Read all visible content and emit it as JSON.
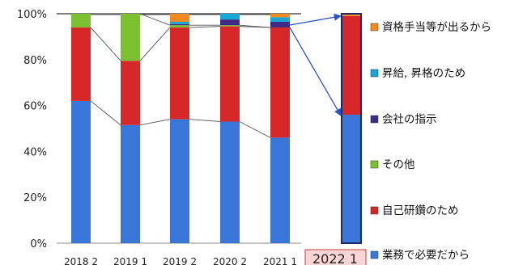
{
  "chart_data": {
    "type": "bar",
    "stacked": true,
    "percent": true,
    "title": "",
    "xlabel": "",
    "ylabel": "",
    "ylim": [
      0,
      100
    ],
    "y_ticks": [
      "0%",
      "20%",
      "40%",
      "60%",
      "80%",
      "100%"
    ],
    "grid": false,
    "legend_position": "right",
    "categories": [
      "2018_2",
      "2019_1",
      "2019_2",
      "2020_2",
      "2021_1",
      "2022_1"
    ],
    "highlight_category": "2022_1",
    "series": [
      {
        "name": "業務で必要だから",
        "color": "#3a76d8",
        "values": [
          62,
          51.5,
          54,
          53,
          46,
          56
        ]
      },
      {
        "name": "自己研鑽のため",
        "color": "#d62828",
        "values": [
          32,
          28,
          40,
          41.5,
          48,
          43
        ]
      },
      {
        "name": "その他",
        "color": "#7cbf30",
        "values": [
          6,
          20.5,
          1,
          0.5,
          0,
          0
        ]
      },
      {
        "name": "会社の指示",
        "color": "#3f2a86",
        "values": [
          0,
          0,
          0.5,
          2.5,
          2.5,
          0
        ]
      },
      {
        "name": "昇給, 昇格のため",
        "color": "#17a6d6",
        "values": [
          0,
          0,
          1,
          2.5,
          2,
          0
        ]
      },
      {
        "name": "資格手当等が出るから",
        "color": "#f58a1f",
        "values": [
          0,
          0,
          3.5,
          0,
          1.5,
          1
        ]
      }
    ]
  }
}
